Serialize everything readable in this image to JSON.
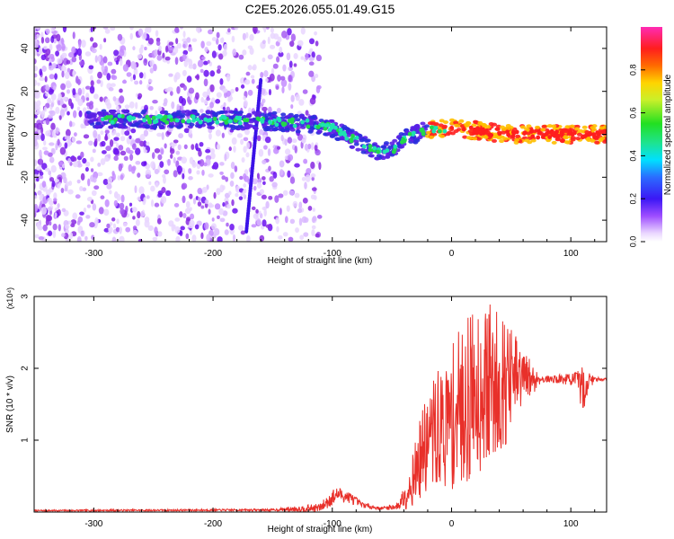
{
  "title": "C2E5.2026.055.01.49.G15",
  "chart_data": [
    {
      "type": "heatmap",
      "title": "C2E5.2026.055.01.49.G15",
      "xlabel": "Height of straight line (km)",
      "ylabel": "Frequency (Hz)",
      "xlim": [
        -350,
        130
      ],
      "ylim": [
        -50,
        50
      ],
      "x_ticks": [
        -300,
        -200,
        -100,
        0,
        100
      ],
      "y_ticks": [
        -40,
        -20,
        0,
        20,
        40
      ],
      "x_tick_labels": [
        "-300",
        "-200",
        "-100",
        "0",
        "100"
      ],
      "y_tick_labels": [
        "-40",
        "-20",
        "0",
        "20",
        "40"
      ],
      "colorbar": {
        "label": "Normalized spectral amplitude",
        "range": [
          0.0,
          1.0
        ],
        "ticks": [
          "0.0",
          "0.2",
          "0.4",
          "0.6",
          "0.8"
        ],
        "colormap": "rainbow (magenta-blue-cyan-green-yellow-red)"
      },
      "ridge": {
        "description_points_x": [
          -300,
          -250,
          -200,
          -150,
          -120,
          -100,
          -80,
          -60,
          -50,
          -40,
          -20,
          0,
          50,
          100,
          130
        ],
        "frequency_hz": [
          7,
          7,
          7,
          6,
          5,
          3,
          -3,
          -8,
          -8,
          -2,
          2,
          3,
          0,
          0,
          0
        ]
      },
      "streak": {
        "x": [
          -172,
          -160
        ],
        "frequency_hz": [
          -45,
          25
        ]
      }
    },
    {
      "type": "line",
      "xlabel": "Height of straight line (km)",
      "ylabel": "SNR (10 * v/v)",
      "y_multiplier": "(x10⁴)",
      "xlim": [
        -350,
        130
      ],
      "ylim": [
        0,
        3
      ],
      "x_ticks": [
        -300,
        -200,
        -100,
        0,
        100
      ],
      "y_ticks": [
        1,
        2,
        3
      ],
      "x_tick_labels": [
        "-300",
        "-200",
        "-100",
        "0",
        "100"
      ],
      "y_tick_labels": [
        "1",
        "2",
        "3"
      ],
      "series": [
        {
          "color": "#e8302a",
          "envelope_x": [
            -350,
            -150,
            -110,
            -100,
            -95,
            -85,
            -75,
            -60,
            -45,
            -35,
            -25,
            -15,
            -5,
            5,
            15,
            25,
            35,
            45,
            55,
            65,
            75,
            85,
            95,
            105,
            110,
            115,
            120,
            130
          ],
          "envelope_mean": [
            0.02,
            0.03,
            0.06,
            0.2,
            0.25,
            0.2,
            0.1,
            0.05,
            0.08,
            0.35,
            0.8,
            1.1,
            1.2,
            1.4,
            1.6,
            1.75,
            1.8,
            1.8,
            1.85,
            1.85,
            1.85,
            1.85,
            1.85,
            1.85,
            1.7,
            1.82,
            1.85,
            1.85
          ],
          "envelope_amp": [
            0.01,
            0.015,
            0.06,
            0.12,
            0.1,
            0.08,
            0.04,
            0.02,
            0.05,
            0.3,
            0.6,
            0.8,
            0.9,
            1.1,
            1.2,
            1.2,
            1.1,
            0.9,
            0.6,
            0.3,
            0.05,
            0.05,
            0.08,
            0.1,
            0.35,
            0.15,
            0.03,
            0.02
          ]
        }
      ]
    }
  ]
}
